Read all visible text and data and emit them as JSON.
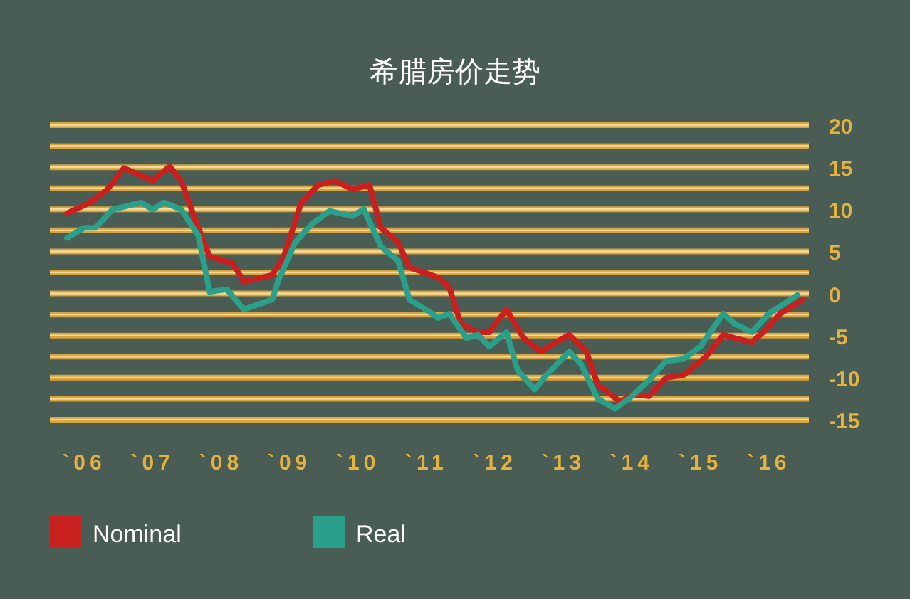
{
  "chart_data": {
    "type": "line",
    "title": "希腊房价走势",
    "xlim": [
      "2005-08",
      "2016-09"
    ],
    "ylim": [
      -15,
      20
    ],
    "xticks": [
      {
        "value": "2006",
        "label": "`06"
      },
      {
        "value": "2007",
        "label": "`07"
      },
      {
        "value": "2008",
        "label": "`08"
      },
      {
        "value": "2009",
        "label": "`09"
      },
      {
        "value": "2010",
        "label": "`10"
      },
      {
        "value": "2011",
        "label": "`11"
      },
      {
        "value": "2012",
        "label": "`12"
      },
      {
        "value": "2013",
        "label": "`13"
      },
      {
        "value": "2014",
        "label": "`14"
      },
      {
        "value": "2015",
        "label": "`15"
      },
      {
        "value": "2016",
        "label": "`16"
      }
    ],
    "yticks": [
      20,
      {
        "value": 17.5,
        "label": null
      },
      15,
      {
        "value": 12.5,
        "label": null
      },
      10,
      {
        "value": 7.5,
        "label": null
      },
      5,
      {
        "value": 2.5,
        "label": null
      },
      0,
      {
        "value": -2.5,
        "label": null
      },
      -5,
      {
        "value": -7.5,
        "label": null
      },
      -10,
      {
        "value": -12.5,
        "label": null
      },
      -15
    ],
    "grid": "y",
    "legend": "bottom left",
    "marker": "none",
    "line_style": "solid",
    "series": [
      {
        "name": "Nominal",
        "color": "#c8201e",
        "x": [
          "2005-11",
          "2006-03",
          "2006-06",
          "2006-09",
          "2007-02",
          "2007-05",
          "2007-07",
          "2007-10",
          "2007-12",
          "2008-04",
          "2008-06",
          "2008-11",
          "2009-01",
          "2009-04",
          "2009-07",
          "2009-10",
          "2010-01",
          "2010-04",
          "2010-06",
          "2010-09",
          "2010-11",
          "2011-04",
          "2011-05",
          "2011-06",
          "2011-08",
          "2011-11",
          "2012-01",
          "2012-04",
          "2012-07",
          "2012-10",
          "2012-12",
          "2013-03",
          "2013-06",
          "2013-08",
          "2013-12",
          "2014-02",
          "2014-05",
          "2014-08",
          "2014-11",
          "2015-03",
          "2015-06",
          "2015-08",
          "2015-11",
          "2016-01",
          "2016-04",
          "2016-08"
        ],
        "values": [
          9.5,
          10.8,
          12.3,
          14.9,
          13.4,
          15.1,
          13.4,
          7.8,
          4.4,
          3.6,
          1.4,
          2.2,
          4.4,
          10.7,
          12.9,
          13.4,
          12.4,
          12.9,
          7.8,
          6.1,
          3.1,
          1.9,
          1.4,
          0.7,
          -3.6,
          -4.6,
          -4.6,
          -1.9,
          -5.3,
          -6.9,
          -6.1,
          -4.9,
          -6.9,
          -10.8,
          -12.9,
          -12.0,
          -12.2,
          -10.0,
          -9.7,
          -7.5,
          -4.9,
          -5.3,
          -5.8,
          -4.6,
          -2.4,
          -0.7
        ]
      },
      {
        "name": "Real",
        "color": "#2aa08a",
        "x": [
          "2005-11",
          "2006-02",
          "2006-04",
          "2006-07",
          "2006-12",
          "2007-02",
          "2007-04",
          "2007-07",
          "2007-10",
          "2007-12",
          "2008-03",
          "2008-06",
          "2008-11",
          "2008-12",
          "2009-03",
          "2009-06",
          "2009-09",
          "2010-01",
          "2010-03",
          "2010-06",
          "2010-09",
          "2010-11",
          "2011-03",
          "2011-04",
          "2011-06",
          "2011-09",
          "2011-11",
          "2012-01",
          "2012-04",
          "2012-06",
          "2012-09",
          "2012-11",
          "2013-03",
          "2013-05",
          "2013-08",
          "2013-11",
          "2014-02",
          "2014-05",
          "2014-08",
          "2014-11",
          "2015-02",
          "2015-06",
          "2015-08",
          "2015-11",
          "2016-02",
          "2016-07"
        ],
        "values": [
          6.6,
          7.8,
          7.8,
          10.0,
          10.8,
          10.0,
          10.8,
          10.0,
          6.9,
          0.2,
          0.5,
          -1.9,
          -0.7,
          1.5,
          6.1,
          8.3,
          9.8,
          9.2,
          10.0,
          5.6,
          3.9,
          -0.7,
          -2.4,
          -2.9,
          -2.4,
          -5.3,
          -4.9,
          -6.3,
          -4.6,
          -9.2,
          -11.4,
          -9.7,
          -6.9,
          -8.3,
          -12.5,
          -13.7,
          -12.2,
          -10.3,
          -8.0,
          -7.8,
          -6.3,
          -2.4,
          -3.6,
          -4.6,
          -2.4,
          -0.2
        ]
      }
    ]
  }
}
